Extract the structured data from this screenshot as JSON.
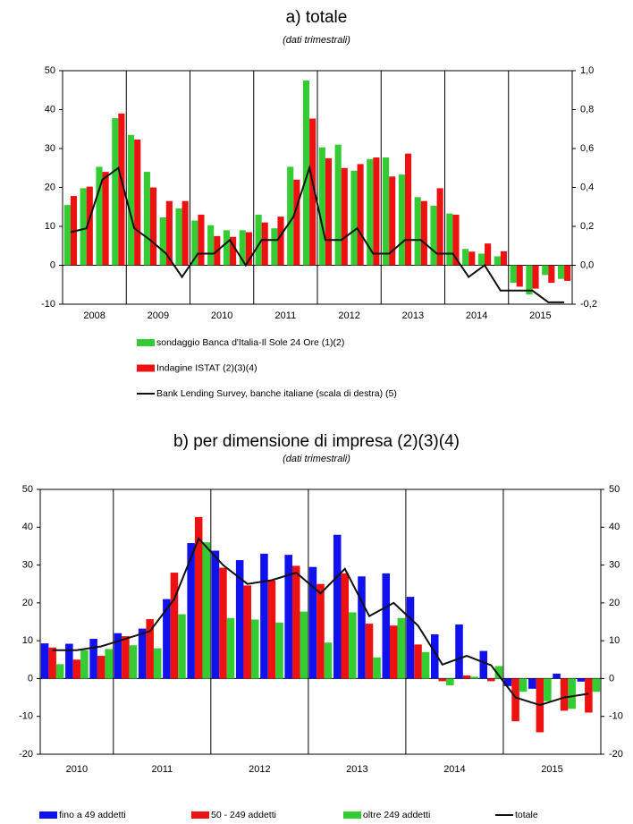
{
  "chart_data": [
    {
      "type": "bar",
      "title": "a) totale",
      "subtitle": "(dati trimestrali)",
      "x": [
        "2008",
        "2008",
        "2008",
        "2008",
        "2009",
        "2009",
        "2009",
        "2009",
        "2010",
        "2010",
        "2010",
        "2010",
        "2011",
        "2011",
        "2011",
        "2011",
        "2012",
        "2012",
        "2012",
        "2012",
        "2013",
        "2013",
        "2013",
        "2013",
        "2014",
        "2014",
        "2014",
        "2014",
        "2015",
        "2015",
        "2015",
        "2015"
      ],
      "ylim": [
        -10,
        50
      ],
      "yticks": [
        -10,
        0,
        10,
        20,
        30,
        40,
        50
      ],
      "y2lim": [
        -0.2,
        1.0
      ],
      "y2ticks": [
        {
          "value": -0.2,
          "label": "-0,2"
        },
        {
          "value": 0,
          "label": "0,0"
        },
        {
          "value": 0.2,
          "label": "0,2"
        },
        {
          "value": 0.4,
          "label": "0,4"
        },
        {
          "value": 0.6,
          "label": "0,6"
        },
        {
          "value": 0.8,
          "label": "0,8"
        },
        {
          "value": 1.0,
          "label": "1,0"
        }
      ],
      "legend": "bottom",
      "series": [
        {
          "name": "sondaggio Banca d'Italia-Il Sole 24 Ore (1)(2)",
          "color": "#33cc33",
          "values": [
            15.5,
            19.8,
            25.3,
            37.8,
            33.5,
            24,
            12.3,
            14.6,
            11.5,
            10.3,
            9,
            9,
            13,
            9.5,
            25.3,
            47.5,
            30.3,
            31,
            24.3,
            27.3,
            27.7,
            23.3,
            17.5,
            15.3,
            13.3,
            4.2,
            3,
            2.3,
            -4.5,
            -7.5,
            -2.5,
            -3.5
          ]
        },
        {
          "name": "Indagine ISTAT (2)(3)(4)",
          "color": "#ee1111",
          "values": [
            17.8,
            20.2,
            24,
            39,
            32.3,
            20,
            16.5,
            16.5,
            13,
            7.5,
            7.3,
            8.5,
            11,
            12.5,
            22,
            37.7,
            27.5,
            25,
            26,
            27.7,
            22.8,
            28.7,
            16.5,
            19.8,
            13,
            3.5,
            5.6,
            3.6,
            -5.5,
            -6,
            -4.5,
            -4
          ]
        },
        {
          "name": "Bank Lending Survey, banche italiane (scala di destra) (5)",
          "color": "#111111",
          "type": "line",
          "axis": "y2",
          "values": [
            0.17,
            0.19,
            0.44,
            0.5,
            0.19,
            0.13,
            0.06,
            -0.06,
            0.06,
            0.06,
            0.13,
            0,
            0.13,
            0.13,
            0.25,
            0.5,
            0.13,
            0.13,
            0.19,
            0.06,
            0.06,
            0.13,
            0.13,
            0.06,
            0.06,
            -0.06,
            0,
            -0.13,
            -0.13,
            -0.13,
            -0.19,
            -0.19
          ]
        }
      ]
    },
    {
      "type": "bar",
      "title": "b) per dimensione di impresa (2)(3)(4)",
      "subtitle": "(dati trimestrali)",
      "x": [
        "2010",
        "2010",
        "2010",
        "2011",
        "2011",
        "2011",
        "2011",
        "2012",
        "2012",
        "2012",
        "2012",
        "2013",
        "2013",
        "2013",
        "2013",
        "2014",
        "2014",
        "2014",
        "2014",
        "2015",
        "2015",
        "2015",
        "2015"
      ],
      "ylim": [
        -20,
        50
      ],
      "yticks": [
        -20,
        -10,
        0,
        10,
        20,
        30,
        40,
        50
      ],
      "y2lim": [
        -20,
        50
      ],
      "y2ticks": [
        -20,
        -10,
        0,
        10,
        20,
        30,
        40,
        50
      ],
      "legend": "bottom",
      "series": [
        {
          "name": "fino a 49 addetti",
          "color": "#1111ee",
          "values": [
            9.3,
            9.2,
            10.5,
            12,
            13.2,
            21,
            35.8,
            33.8,
            31.3,
            33,
            32.7,
            29.5,
            38,
            27,
            27.8,
            21.6,
            11.7,
            14.3,
            7.3,
            -2,
            -2.7,
            1.3,
            -0.8
          ]
        },
        {
          "name": "50 - 249 addetti",
          "color": "#ee1111",
          "values": [
            8.2,
            5,
            6,
            11.2,
            15.7,
            28,
            42.7,
            29.3,
            24.6,
            25.9,
            29.8,
            25,
            27.8,
            14.5,
            14,
            9,
            -0.7,
            0.8,
            -0.7,
            -11.3,
            -14.2,
            -8.5,
            -9
          ]
        },
        {
          "name": "oltre 249 addetti",
          "color": "#33cc33",
          "values": [
            3.8,
            7.5,
            7.8,
            8.8,
            8,
            17,
            36,
            16,
            15.6,
            14.8,
            17.7,
            9.5,
            17.5,
            5.6,
            16,
            7,
            -1.8,
            0.5,
            3.3,
            -3.5,
            -6,
            -8,
            -3.5
          ]
        },
        {
          "name": "totale",
          "color": "#111111",
          "type": "line",
          "values": [
            7.5,
            7.5,
            8.5,
            10.5,
            12.5,
            21,
            37,
            30,
            25,
            26,
            28,
            22.5,
            29,
            16.5,
            20,
            14,
            3.7,
            6,
            3.5,
            -5,
            -7,
            -5,
            -4
          ]
        }
      ]
    }
  ]
}
